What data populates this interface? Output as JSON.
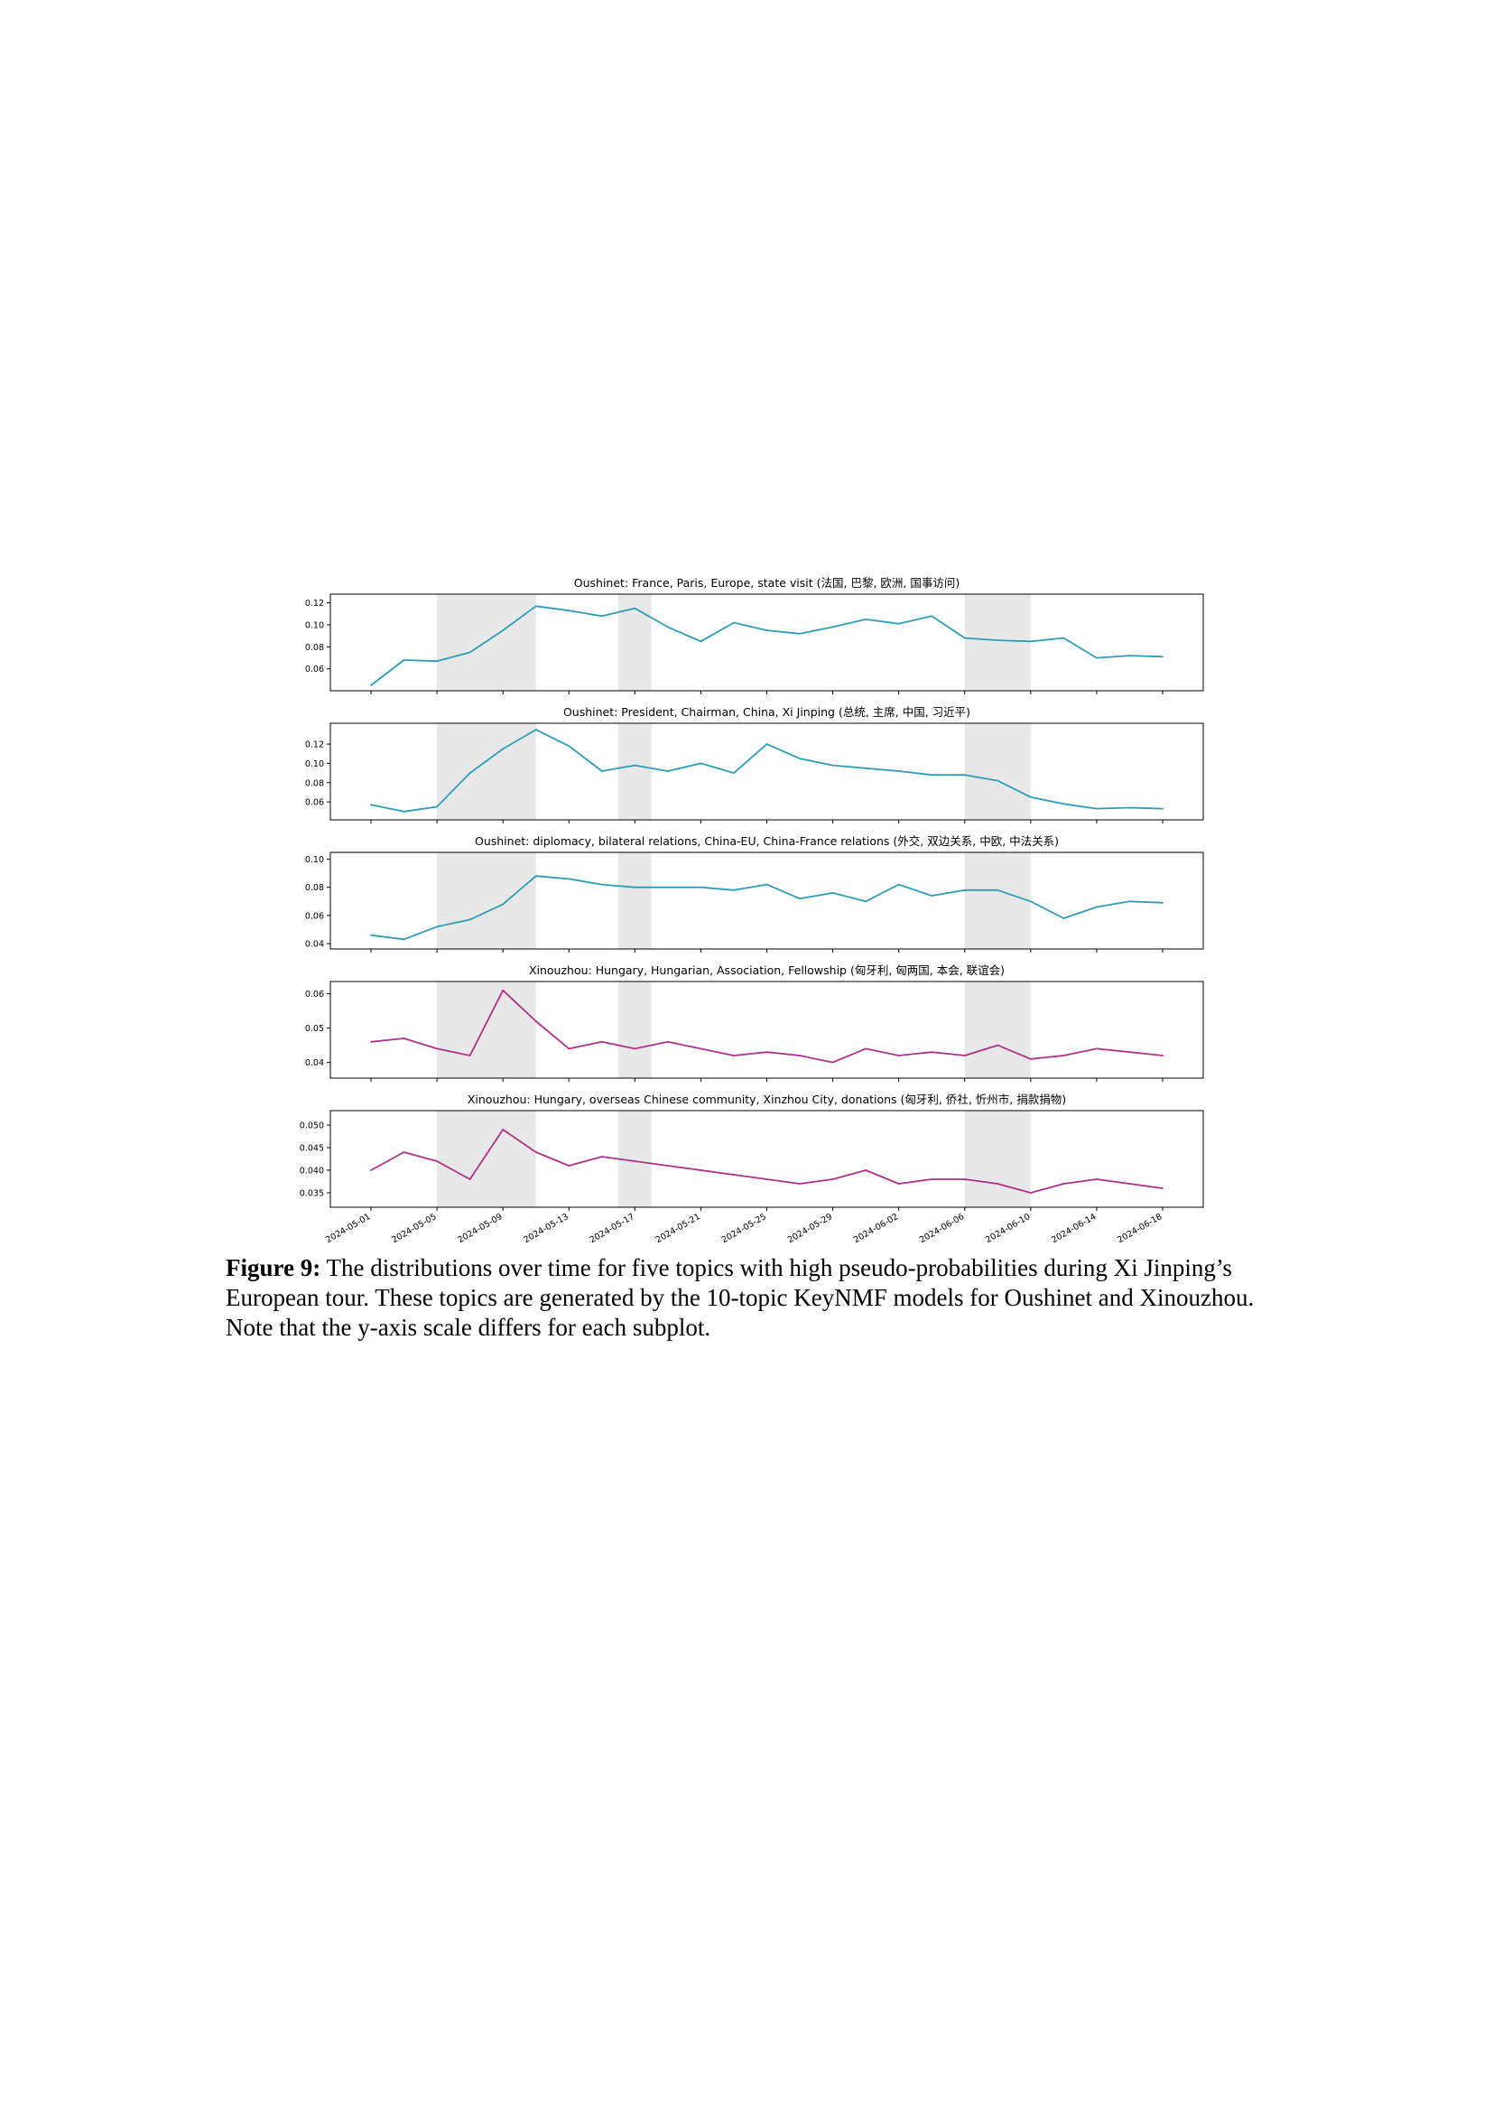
{
  "figure": {
    "caption_label": "Figure 9:",
    "caption_text": " The distributions over time for five topics with high pseudo-probabilities during Xi Jinping’s European tour. These topics are generated by the 10-topic KeyNMF models for Oushinet and Xinouzhou. Note that the y-axis scale differs for each subplot."
  },
  "colors": {
    "oushinet_line": "#2e9db8",
    "xinouzhou_line": "#b0318a",
    "highlight_band": "#e8e8e8"
  },
  "chart_data": [
    {
      "type": "line",
      "title": "Oushinet: France, Paris, Europe, state visit (法国, 巴黎, 欧洲, 国事访问)",
      "color": "#2e9db8",
      "x": [
        "2024-05-01",
        "2024-05-03",
        "2024-05-05",
        "2024-05-07",
        "2024-05-09",
        "2024-05-11",
        "2024-05-13",
        "2024-05-15",
        "2024-05-17",
        "2024-05-19",
        "2024-05-21",
        "2024-05-23",
        "2024-05-25",
        "2024-05-27",
        "2024-05-29",
        "2024-05-31",
        "2024-06-02",
        "2024-06-04",
        "2024-06-06",
        "2024-06-08",
        "2024-06-10",
        "2024-06-12",
        "2024-06-14",
        "2024-06-16",
        "2024-06-18"
      ],
      "y": [
        0.045,
        0.068,
        0.067,
        0.075,
        0.095,
        0.117,
        0.113,
        0.108,
        0.115,
        0.098,
        0.085,
        0.102,
        0.095,
        0.092,
        0.098,
        0.105,
        0.101,
        0.108,
        0.088,
        0.086,
        0.085,
        0.088,
        0.07,
        0.072,
        0.071
      ],
      "yticks": [
        "0.06",
        "0.08",
        "0.10",
        "0.12"
      ],
      "ylim": [
        0.045,
        0.123
      ]
    },
    {
      "type": "line",
      "title": "Oushinet: President, Chairman, China, Xi Jinping (总统, 主席, 中国, 习近平)",
      "color": "#2e9db8",
      "x": [
        "2024-05-01",
        "2024-05-03",
        "2024-05-05",
        "2024-05-07",
        "2024-05-09",
        "2024-05-11",
        "2024-05-13",
        "2024-05-15",
        "2024-05-17",
        "2024-05-19",
        "2024-05-21",
        "2024-05-23",
        "2024-05-25",
        "2024-05-27",
        "2024-05-29",
        "2024-05-31",
        "2024-06-02",
        "2024-06-04",
        "2024-06-06",
        "2024-06-08",
        "2024-06-10",
        "2024-06-12",
        "2024-06-14",
        "2024-06-16",
        "2024-06-18"
      ],
      "y": [
        0.057,
        0.05,
        0.055,
        0.09,
        0.115,
        0.135,
        0.118,
        0.092,
        0.098,
        0.092,
        0.1,
        0.09,
        0.12,
        0.105,
        0.098,
        0.095,
        0.092,
        0.088,
        0.088,
        0.082,
        0.065,
        0.058,
        0.053,
        0.054,
        0.053
      ],
      "yticks": [
        "0.06",
        "0.08",
        "0.10",
        "0.12"
      ],
      "ylim": [
        0.047,
        0.136
      ]
    },
    {
      "type": "line",
      "title": "Oushinet: diplomacy, bilateral relations, China-EU, China-France relations (外交, 双边关系, 中欧, 中法关系)",
      "color": "#2e9db8",
      "x": [
        "2024-05-01",
        "2024-05-03",
        "2024-05-05",
        "2024-05-07",
        "2024-05-09",
        "2024-05-11",
        "2024-05-13",
        "2024-05-15",
        "2024-05-17",
        "2024-05-19",
        "2024-05-21",
        "2024-05-23",
        "2024-05-25",
        "2024-05-27",
        "2024-05-29",
        "2024-05-31",
        "2024-06-02",
        "2024-06-04",
        "2024-06-06",
        "2024-06-08",
        "2024-06-10",
        "2024-06-12",
        "2024-06-14",
        "2024-06-16",
        "2024-06-18"
      ],
      "y": [
        0.046,
        0.043,
        0.052,
        0.057,
        0.068,
        0.088,
        0.086,
        0.082,
        0.08,
        0.08,
        0.08,
        0.078,
        0.082,
        0.072,
        0.076,
        0.07,
        0.082,
        0.074,
        0.078,
        0.078,
        0.07,
        0.058,
        0.066,
        0.07,
        0.069
      ],
      "yticks": [
        "0.04",
        "0.06",
        "0.08",
        "0.10"
      ],
      "ylim": [
        0.04,
        0.101
      ]
    },
    {
      "type": "line",
      "title": "Xinouzhou: Hungary, Hungarian, Association, Fellowship (匈牙利, 匈两国, 本会, 联谊会)",
      "color": "#b0318a",
      "x": [
        "2024-05-01",
        "2024-05-03",
        "2024-05-05",
        "2024-05-07",
        "2024-05-09",
        "2024-05-11",
        "2024-05-13",
        "2024-05-15",
        "2024-05-17",
        "2024-05-19",
        "2024-05-21",
        "2024-05-23",
        "2024-05-25",
        "2024-05-27",
        "2024-05-29",
        "2024-05-31",
        "2024-06-02",
        "2024-06-04",
        "2024-06-06",
        "2024-06-08",
        "2024-06-10",
        "2024-06-12",
        "2024-06-14",
        "2024-06-16",
        "2024-06-18"
      ],
      "y": [
        0.046,
        0.047,
        0.044,
        0.042,
        0.061,
        0.052,
        0.044,
        0.046,
        0.044,
        0.046,
        0.044,
        0.042,
        0.043,
        0.042,
        0.04,
        0.044,
        0.042,
        0.043,
        0.042,
        0.045,
        0.041,
        0.042,
        0.044,
        0.043,
        0.042
      ],
      "yticks": [
        "0.04",
        "0.05",
        "0.06"
      ],
      "ylim": [
        0.037,
        0.062
      ]
    },
    {
      "type": "line",
      "title": "Xinouzhou: Hungary, overseas Chinese community, Xinzhou City, donations (匈牙利, 侨社, 忻州市, 捐款捐物)",
      "color": "#b0318a",
      "x": [
        "2024-05-01",
        "2024-05-03",
        "2024-05-05",
        "2024-05-07",
        "2024-05-09",
        "2024-05-11",
        "2024-05-13",
        "2024-05-15",
        "2024-05-17",
        "2024-05-19",
        "2024-05-21",
        "2024-05-23",
        "2024-05-25",
        "2024-05-27",
        "2024-05-29",
        "2024-05-31",
        "2024-06-02",
        "2024-06-04",
        "2024-06-06",
        "2024-06-08",
        "2024-06-10",
        "2024-06-12",
        "2024-06-14",
        "2024-06-16",
        "2024-06-18"
      ],
      "y": [
        0.04,
        0.044,
        0.042,
        0.038,
        0.049,
        0.044,
        0.041,
        0.043,
        0.042,
        0.041,
        0.04,
        0.039,
        0.038,
        0.037,
        0.038,
        0.04,
        0.037,
        0.038,
        0.038,
        0.037,
        0.035,
        0.037,
        0.038,
        0.037,
        0.036
      ],
      "yticks": [
        "0.035",
        "0.040",
        "0.045",
        "0.050"
      ],
      "ylim": [
        0.033,
        0.052
      ]
    }
  ],
  "shaded_periods": [
    [
      "2024-05-05",
      "2024-05-11"
    ],
    [
      "2024-05-16",
      "2024-05-18"
    ],
    [
      "2024-06-06",
      "2024-06-10"
    ]
  ],
  "shared_x_axis": {
    "tick_labels": [
      "2024-05-01",
      "2024-05-05",
      "2024-05-09",
      "2024-05-13",
      "2024-05-17",
      "2024-05-21",
      "2024-05-25",
      "2024-05-29",
      "2024-06-02",
      "2024-06-06",
      "2024-06-10",
      "2024-06-14",
      "2024-06-18"
    ],
    "range": [
      "2024-05-01",
      "2024-06-18"
    ]
  }
}
